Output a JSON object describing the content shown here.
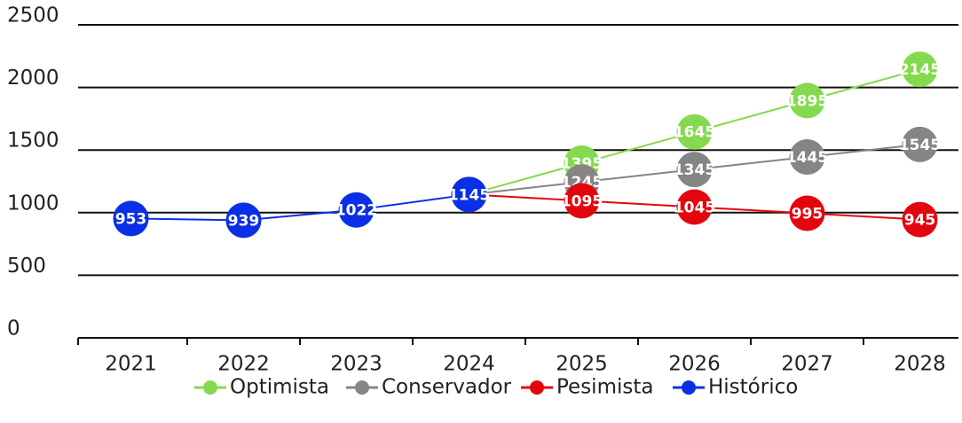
{
  "chart_data": {
    "type": "line",
    "categories": [
      "2021",
      "2022",
      "2023",
      "2024",
      "2025",
      "2026",
      "2027",
      "2028"
    ],
    "series": [
      {
        "name": "Optimista",
        "color": "#84d94e",
        "values": [
          null,
          null,
          null,
          1145,
          1395,
          1645,
          1895,
          2145
        ]
      },
      {
        "name": "Conservador",
        "color": "#858585",
        "values": [
          null,
          null,
          null,
          1145,
          1245,
          1345,
          1445,
          1545
        ]
      },
      {
        "name": "Pesimista",
        "color": "#e4060f",
        "values": [
          null,
          null,
          null,
          1145,
          1095,
          1045,
          995,
          945
        ]
      },
      {
        "name": "Histórico",
        "color": "#0b2fe6",
        "values": [
          953,
          939,
          1022,
          1145,
          null,
          null,
          null,
          null
        ]
      }
    ],
    "ylim": [
      0,
      2500
    ],
    "yticks": [
      0,
      500,
      1000,
      1500,
      2000,
      2500
    ],
    "grid": true,
    "legend": "bottom"
  }
}
